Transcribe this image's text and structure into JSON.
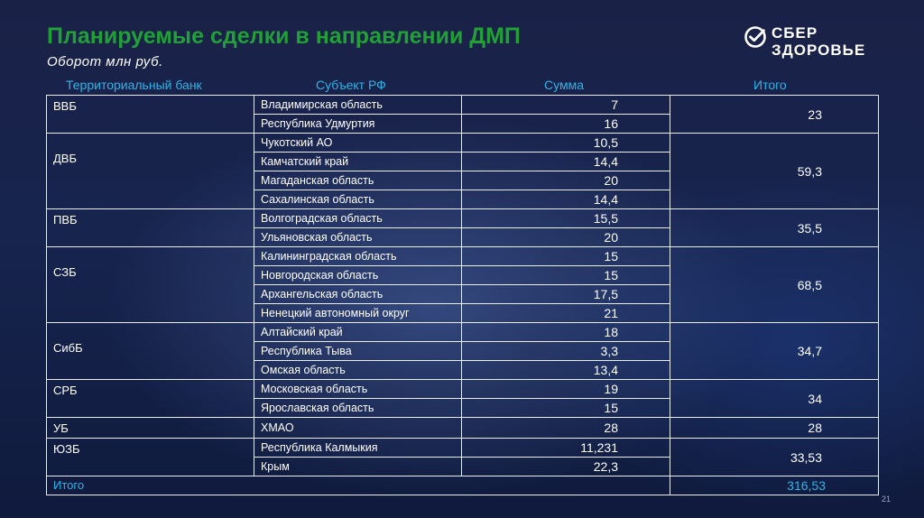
{
  "header": {
    "title": "Планируемые сделки в направлении ДМП",
    "subtitle": "Оборот млн руб."
  },
  "logo": {
    "line1": "СБЕР",
    "line2": "ЗДОРОВЬЕ",
    "icon": "sber-check-icon",
    "accent": "#21a038"
  },
  "table": {
    "columns": [
      "Территориальный банк",
      "Субъект РФ",
      "Сумма",
      "Итого"
    ],
    "groups": [
      {
        "bank": "ВВБ",
        "total": "23",
        "rows": [
          {
            "subject": "Владимирская область",
            "sum": "7"
          },
          {
            "subject": "Республика Удмуртия",
            "sum": "16"
          }
        ]
      },
      {
        "bank": "ДВБ",
        "total": "59,3",
        "rows": [
          {
            "subject": "Чукотский АО",
            "sum": "10,5"
          },
          {
            "subject": "Камчатский край",
            "sum": "14,4"
          },
          {
            "subject": "Магаданская область",
            "sum": "20"
          },
          {
            "subject": "Сахалинская область",
            "sum": "14,4"
          }
        ]
      },
      {
        "bank": "ПВБ",
        "total": "35,5",
        "rows": [
          {
            "subject": "Волгоградская область",
            "sum": "15,5"
          },
          {
            "subject": "Ульяновская область",
            "sum": "20"
          }
        ]
      },
      {
        "bank": "СЗБ",
        "total": "68,5",
        "rows": [
          {
            "subject": "Калининградская область",
            "sum": "15"
          },
          {
            "subject": "Новгородская область",
            "sum": "15"
          },
          {
            "subject": "Архангельская область",
            "sum": "17,5"
          },
          {
            "subject": "Ненецкий автономный округ",
            "sum": "21"
          }
        ]
      },
      {
        "bank": "СибБ",
        "total": "34,7",
        "rows": [
          {
            "subject": "Алтайский край",
            "sum": "18"
          },
          {
            "subject": "Республика Тыва",
            "sum": "3,3"
          },
          {
            "subject": "Омская область",
            "sum": "13,4"
          }
        ]
      },
      {
        "bank": "СРБ",
        "total": "34",
        "rows": [
          {
            "subject": "Московская область",
            "sum": "19"
          },
          {
            "subject": "Ярославская область",
            "sum": "15"
          }
        ]
      },
      {
        "bank": "УБ",
        "total": "28",
        "rows": [
          {
            "subject": "ХМАО",
            "sum": "28"
          }
        ]
      },
      {
        "bank": "ЮЗБ",
        "total": "33,53",
        "rows": [
          {
            "subject": "Республика Калмыкия",
            "sum": "11,231"
          },
          {
            "subject": "Крым",
            "sum": "22,3"
          }
        ]
      }
    ],
    "grand_total": {
      "label": "Итого",
      "value": "316,53"
    }
  },
  "footer": {
    "page_number": "21"
  },
  "colors": {
    "title": "#21a038",
    "header_text": "#2bb5e8",
    "grid": "#e9eef7"
  }
}
